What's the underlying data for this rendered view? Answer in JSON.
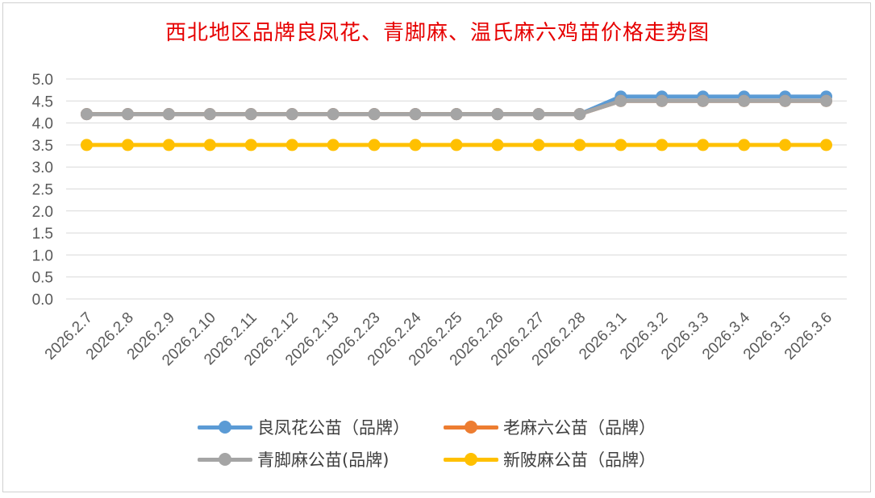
{
  "chart_data": {
    "type": "line",
    "title": "西北地区品牌良凤花、青脚麻、温氏麻六鸡苗价格走势图",
    "categories": [
      "2026.2.7",
      "2026.2.8",
      "2026.2.9",
      "2026.2.10",
      "2026.2.11",
      "2026.2.12",
      "2026.2.13",
      "2026.2.23",
      "2026.2.24",
      "2026.2.25",
      "2026.2.26",
      "2026.2.27",
      "2026.2.28",
      "2026.3.1",
      "2026.3.2",
      "2026.3.3",
      "2026.3.4",
      "2026.3.5",
      "2026.3.6"
    ],
    "yticks": [
      "0.0",
      "0.5",
      "1.0",
      "1.5",
      "2.0",
      "2.5",
      "3.0",
      "3.5",
      "4.0",
      "4.5",
      "5.0"
    ],
    "ylim": [
      0,
      5
    ],
    "grid": true,
    "legend_position": "bottom",
    "series": [
      {
        "name": "良凤花公苗（品牌）",
        "color": "#5b9bd5",
        "values": [
          4.2,
          4.2,
          4.2,
          4.2,
          4.2,
          4.2,
          4.2,
          4.2,
          4.2,
          4.2,
          4.2,
          4.2,
          4.2,
          4.6,
          4.6,
          4.6,
          4.6,
          4.6,
          4.6
        ]
      },
      {
        "name": "老麻六公苗（品牌）",
        "color": "#ed7d31",
        "values": [
          4.2,
          4.2,
          4.2,
          4.2,
          4.2,
          4.2,
          4.2,
          4.2,
          4.2,
          4.2,
          4.2,
          4.2,
          4.2,
          4.5,
          4.5,
          4.5,
          4.5,
          4.5,
          4.5
        ]
      },
      {
        "name": "青脚麻公苗(品牌)",
        "color": "#a5a5a5",
        "values": [
          4.2,
          4.2,
          4.2,
          4.2,
          4.2,
          4.2,
          4.2,
          4.2,
          4.2,
          4.2,
          4.2,
          4.2,
          4.2,
          4.5,
          4.5,
          4.5,
          4.5,
          4.5,
          4.5
        ]
      },
      {
        "name": "新陂麻公苗（品牌）",
        "color": "#ffc000",
        "values": [
          3.5,
          3.5,
          3.5,
          3.5,
          3.5,
          3.5,
          3.5,
          3.5,
          3.5,
          3.5,
          3.5,
          3.5,
          3.5,
          3.5,
          3.5,
          3.5,
          3.5,
          3.5,
          3.5
        ]
      }
    ]
  }
}
